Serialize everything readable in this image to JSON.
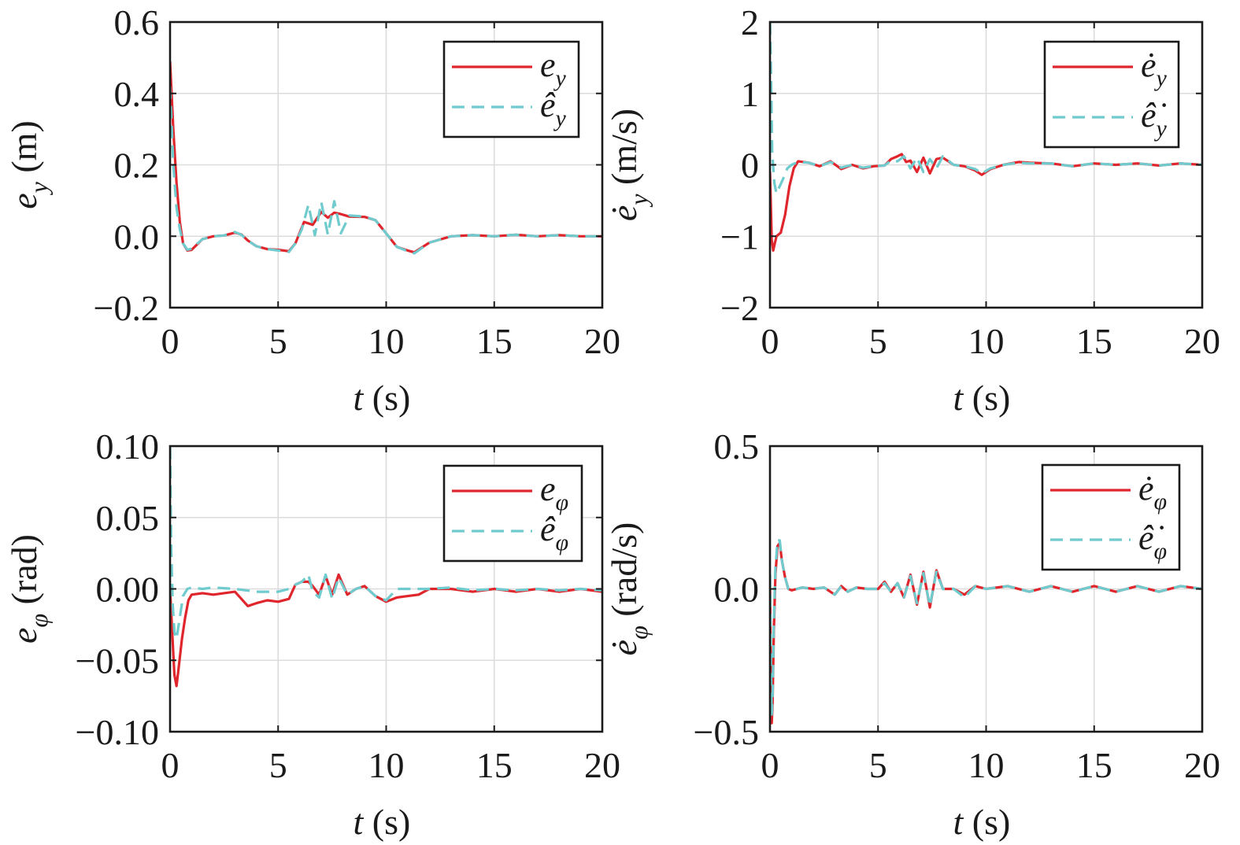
{
  "colors": {
    "estimated_error": "#e0262d",
    "observer_estimate": "#6fcbcd",
    "axis": "#1a1a1a",
    "grid": "#dcdcdc"
  },
  "chart_data": [
    {
      "type": "line",
      "ylabel": "e_y (m)",
      "xlabel": "t (s)",
      "xlim": [
        0,
        20
      ],
      "ylim": [
        -0.2,
        0.6
      ],
      "xticks": [
        "0",
        "5",
        "10",
        "15",
        "20"
      ],
      "yticks": [
        "−0.2",
        "0.0",
        "0.2",
        "0.4",
        "0.6"
      ],
      "yvals": [
        -0.2,
        0.0,
        0.2,
        0.4,
        0.6
      ],
      "grid": true,
      "legend_position": "top-right",
      "series": [
        {
          "name": "e_y",
          "style": "solid",
          "x": [
            0,
            0.15,
            0.3,
            0.45,
            0.6,
            0.8,
            1.0,
            1.5,
            2.0,
            2.5,
            3.0,
            3.3,
            3.6,
            4.0,
            4.5,
            5.0,
            5.5,
            5.8,
            6.2,
            6.6,
            7.0,
            7.3,
            7.6,
            7.9,
            8.3,
            9.0,
            9.5,
            10.0,
            10.5,
            11.0,
            11.3,
            12.0,
            13.0,
            14.0,
            15.0,
            16.0,
            17.0,
            18.0,
            19.0,
            20.0
          ],
          "y": [
            0.49,
            0.3,
            0.15,
            0.04,
            -0.02,
            -0.04,
            -0.038,
            -0.008,
            0.0,
            0.002,
            0.01,
            0.005,
            -0.012,
            -0.028,
            -0.036,
            -0.038,
            -0.042,
            -0.02,
            0.04,
            0.032,
            0.068,
            0.052,
            0.066,
            0.062,
            0.055,
            0.054,
            0.045,
            0.008,
            -0.03,
            -0.04,
            -0.045,
            -0.018,
            0.0,
            0.003,
            0.0,
            0.004,
            0.0,
            0.003,
            0.0,
            0.0
          ]
        },
        {
          "name": "ê_y",
          "style": "dashed",
          "x": [
            0,
            0.15,
            0.3,
            0.45,
            0.6,
            0.8,
            1.0,
            1.5,
            2.0,
            2.5,
            3.0,
            3.3,
            3.6,
            4.0,
            4.5,
            5.0,
            5.5,
            5.8,
            6.1,
            6.4,
            6.7,
            7.0,
            7.3,
            7.6,
            7.9,
            8.3,
            9.0,
            9.5,
            10.0,
            10.5,
            11.0,
            11.3,
            12.0,
            13.0,
            14.0,
            15.0,
            16.0,
            17.0,
            18.0,
            19.0,
            20.0
          ],
          "y": [
            0.42,
            0.2,
            0.08,
            0.02,
            -0.02,
            -0.038,
            -0.035,
            -0.008,
            0.0,
            0.002,
            0.012,
            0.004,
            -0.012,
            -0.028,
            -0.036,
            -0.04,
            -0.044,
            -0.02,
            0.02,
            0.088,
            0.003,
            0.095,
            0.005,
            0.098,
            0.008,
            0.058,
            0.055,
            0.045,
            0.008,
            -0.03,
            -0.042,
            -0.048,
            -0.018,
            0.0,
            0.003,
            0.0,
            0.004,
            0.0,
            0.003,
            0.0,
            0.0
          ]
        }
      ]
    },
    {
      "type": "line",
      "ylabel": "ė_y (m/s)",
      "xlabel": "t (s)",
      "xlim": [
        0,
        20
      ],
      "ylim": [
        -2,
        2
      ],
      "xticks": [
        "0",
        "5",
        "10",
        "15",
        "20"
      ],
      "yticks": [
        "−2",
        "−1",
        "0",
        "1",
        "2"
      ],
      "yvals": [
        -2,
        -1,
        0,
        1,
        2
      ],
      "grid": true,
      "legend_position": "top-right",
      "series": [
        {
          "name": "ė_y",
          "style": "solid",
          "x": [
            0,
            0.08,
            0.15,
            0.3,
            0.5,
            0.7,
            0.9,
            1.1,
            1.3,
            1.8,
            2.3,
            2.8,
            3.3,
            3.8,
            4.3,
            4.8,
            5.3,
            5.6,
            5.9,
            6.1,
            6.3,
            6.5,
            6.8,
            7.1,
            7.4,
            7.7,
            8.0,
            8.5,
            9.0,
            9.5,
            9.8,
            10.2,
            10.8,
            11.5,
            12.0,
            13.0,
            14.0,
            15.0,
            16.0,
            17.0,
            18.0,
            19.0,
            20.0
          ],
          "y": [
            -0.1,
            -1.05,
            -1.2,
            -1.0,
            -0.95,
            -0.7,
            -0.3,
            -0.05,
            0.05,
            0.03,
            -0.02,
            0.05,
            -0.06,
            0.0,
            -0.05,
            -0.02,
            -0.01,
            0.08,
            0.12,
            0.15,
            0.04,
            0.06,
            -0.1,
            0.1,
            -0.12,
            0.08,
            0.1,
            0.0,
            -0.02,
            -0.08,
            -0.14,
            -0.06,
            0.0,
            0.04,
            0.03,
            0.02,
            -0.02,
            0.02,
            0.0,
            0.02,
            -0.01,
            0.02,
            0.0
          ]
        },
        {
          "name": "ê̇_y",
          "style": "dashed",
          "x": [
            0,
            0.05,
            0.1,
            0.2,
            0.3,
            0.45,
            0.6,
            0.8,
            1.0,
            1.3,
            1.8,
            2.3,
            2.8,
            3.3,
            3.8,
            4.3,
            4.8,
            5.3,
            5.6,
            5.9,
            6.2,
            6.5,
            6.8,
            7.1,
            7.4,
            7.7,
            8.0,
            8.5,
            9.0,
            9.5,
            9.8,
            10.2,
            10.8,
            11.5,
            12.0,
            13.0,
            14.0,
            15.0,
            16.0,
            17.0,
            18.0,
            19.0,
            20.0
          ],
          "y": [
            2.0,
            1.2,
            0.2,
            -0.25,
            -0.4,
            -0.3,
            -0.2,
            -0.05,
            0.0,
            0.04,
            0.03,
            -0.02,
            0.04,
            -0.04,
            0.0,
            -0.04,
            -0.02,
            -0.01,
            0.06,
            0.05,
            0.12,
            -0.05,
            0.1,
            -0.1,
            0.08,
            -0.05,
            0.12,
            0.0,
            -0.02,
            -0.06,
            -0.12,
            -0.05,
            0.0,
            0.03,
            0.02,
            0.02,
            -0.02,
            0.02,
            0.0,
            0.02,
            -0.01,
            0.02,
            0.0
          ]
        }
      ]
    },
    {
      "type": "line",
      "ylabel": "e_φ (rad)",
      "xlabel": "t (s)",
      "xlim": [
        0,
        20
      ],
      "ylim": [
        -0.1,
        0.1
      ],
      "xticks": [
        "0",
        "5",
        "10",
        "15",
        "20"
      ],
      "yticks": [
        "−0.10",
        "−0.05",
        "0.00",
        "0.05",
        "0.10"
      ],
      "yvals": [
        -0.1,
        -0.05,
        0.0,
        0.05,
        0.1
      ],
      "grid": true,
      "legend_position": "top-right",
      "series": [
        {
          "name": "e_φ",
          "style": "solid",
          "x": [
            0,
            0.1,
            0.2,
            0.3,
            0.4,
            0.55,
            0.7,
            0.85,
            1.0,
            1.5,
            2.0,
            2.5,
            3.0,
            3.3,
            3.6,
            4.0,
            4.5,
            5.0,
            5.5,
            5.8,
            6.1,
            6.4,
            6.6,
            6.9,
            7.2,
            7.5,
            7.8,
            8.2,
            8.6,
            9.0,
            9.5,
            10.0,
            10.5,
            11.0,
            11.5,
            12.0,
            13.0,
            14.0,
            15.0,
            16.0,
            17.0,
            18.0,
            19.0,
            20.0
          ],
          "y": [
            0.0,
            -0.03,
            -0.06,
            -0.068,
            -0.055,
            -0.035,
            -0.02,
            -0.008,
            -0.004,
            -0.003,
            -0.004,
            -0.003,
            -0.002,
            -0.007,
            -0.012,
            -0.01,
            -0.008,
            -0.009,
            -0.007,
            0.003,
            0.005,
            0.005,
            0.002,
            -0.004,
            0.009,
            -0.004,
            0.01,
            -0.004,
            0.0,
            0.002,
            -0.005,
            -0.009,
            -0.006,
            -0.005,
            -0.004,
            0.0,
            0.0,
            -0.002,
            0.0,
            -0.002,
            0.0,
            -0.002,
            0.0,
            -0.002
          ]
        },
        {
          "name": "ê_φ",
          "style": "dashed",
          "x": [
            0,
            0.05,
            0.12,
            0.2,
            0.3,
            0.45,
            0.6,
            0.8,
            1.0,
            1.5,
            2.0,
            3.0,
            4.0,
            5.0,
            5.5,
            5.8,
            6.1,
            6.4,
            6.6,
            6.9,
            7.2,
            7.5,
            7.8,
            8.2,
            8.6,
            9.0,
            9.5,
            10.0,
            10.5,
            11.0,
            11.5,
            12.0,
            13.0,
            14.0,
            15.0,
            16.0,
            17.0,
            18.0,
            19.0,
            20.0
          ],
          "y": [
            0.1,
            0.03,
            -0.01,
            -0.03,
            -0.035,
            -0.02,
            -0.005,
            0.0,
            0.001,
            0.0,
            0.001,
            0.0,
            -0.002,
            -0.002,
            0.0,
            0.003,
            0.005,
            0.01,
            -0.002,
            -0.006,
            0.01,
            -0.007,
            0.008,
            -0.004,
            0.0,
            0.002,
            -0.005,
            -0.008,
            0.0,
            0.0,
            0.0,
            0.0,
            0.001,
            -0.001,
            0.0,
            -0.001,
            0.0,
            -0.001,
            0.0,
            -0.001
          ]
        }
      ]
    },
    {
      "type": "line",
      "ylabel": "ė_φ (rad/s)",
      "xlabel": "t (s)",
      "xlim": [
        0,
        20
      ],
      "ylim": [
        -0.5,
        0.5
      ],
      "xticks": [
        "0",
        "5",
        "10",
        "15",
        "20"
      ],
      "yticks": [
        "−0.5",
        "0.0",
        "0.5"
      ],
      "yvals": [
        -0.5,
        0.0,
        0.5
      ],
      "grid": true,
      "legend_position": "top-right",
      "series": [
        {
          "name": "ė_φ",
          "style": "solid",
          "x": [
            0,
            0.04,
            0.08,
            0.12,
            0.18,
            0.25,
            0.35,
            0.45,
            0.55,
            0.7,
            0.85,
            1.0,
            1.5,
            2.0,
            2.5,
            3.0,
            3.3,
            3.6,
            4.0,
            4.5,
            5.0,
            5.3,
            5.6,
            5.9,
            6.2,
            6.5,
            6.8,
            7.1,
            7.4,
            7.7,
            8.0,
            8.5,
            9.0,
            9.5,
            10.0,
            11.0,
            12.0,
            13.0,
            14.0,
            15.0,
            16.0,
            17.0,
            18.0,
            19.0,
            20.0
          ],
          "y": [
            0.0,
            -0.3,
            -0.47,
            -0.4,
            -0.15,
            0.05,
            0.15,
            0.16,
            0.1,
            0.04,
            0.0,
            -0.005,
            0.005,
            0.0,
            0.005,
            -0.02,
            0.01,
            -0.01,
            0.005,
            0.0,
            0.0,
            0.025,
            -0.01,
            0.02,
            -0.03,
            0.05,
            -0.055,
            0.06,
            -0.065,
            0.065,
            0.0,
            0.0,
            -0.02,
            0.01,
            0.0,
            0.01,
            -0.01,
            0.01,
            -0.01,
            0.01,
            -0.01,
            0.01,
            -0.01,
            0.01,
            0.0
          ]
        },
        {
          "name": "ê̇_φ",
          "style": "dashed",
          "x": [
            0,
            0.04,
            0.08,
            0.12,
            0.18,
            0.25,
            0.35,
            0.45,
            0.55,
            0.7,
            0.85,
            1.0,
            1.5,
            2.0,
            2.5,
            3.0,
            3.3,
            3.6,
            4.0,
            4.5,
            5.0,
            5.3,
            5.6,
            5.9,
            6.2,
            6.5,
            6.8,
            7.1,
            7.4,
            7.7,
            8.0,
            8.5,
            9.0,
            9.5,
            10.0,
            11.0,
            12.0,
            13.0,
            14.0,
            15.0,
            16.0,
            17.0,
            18.0,
            19.0,
            20.0
          ],
          "y": [
            0.05,
            -0.25,
            -0.44,
            -0.38,
            -0.12,
            0.07,
            0.17,
            0.17,
            0.1,
            0.04,
            0.0,
            -0.005,
            0.005,
            0.0,
            0.005,
            -0.02,
            0.01,
            -0.01,
            0.005,
            0.0,
            0.0,
            0.02,
            -0.01,
            0.02,
            -0.03,
            0.045,
            -0.05,
            0.055,
            -0.06,
            0.06,
            0.0,
            0.0,
            -0.03,
            0.01,
            0.0,
            0.01,
            -0.01,
            0.01,
            -0.01,
            0.01,
            -0.01,
            0.01,
            -0.01,
            0.01,
            0.0
          ]
        }
      ]
    }
  ]
}
